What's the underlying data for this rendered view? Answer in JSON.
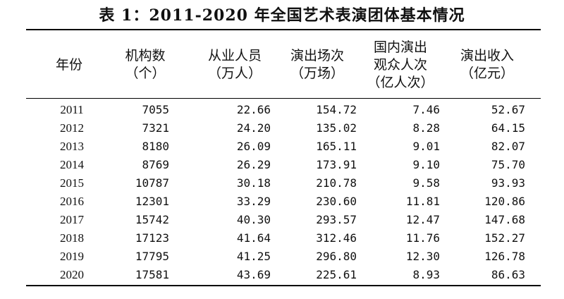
{
  "title": "表 1：2011-2020 年全国艺术表演团体基本情况",
  "headers": {
    "year": [
      "年份"
    ],
    "orgs": [
      "机构数",
      "（个）"
    ],
    "staff": [
      "从业人员",
      "（万人）"
    ],
    "shows": [
      "演出场次",
      "（万场）"
    ],
    "audience": [
      "国内演出",
      "观众人次",
      "（亿人次）"
    ],
    "revenue": [
      "演出收入",
      "（亿元）"
    ]
  },
  "rows": [
    {
      "year": "2011",
      "orgs": "7055",
      "staff": "22.66",
      "shows": "154.72",
      "audience": "7.46",
      "revenue": "52.67"
    },
    {
      "year": "2012",
      "orgs": "7321",
      "staff": "24.20",
      "shows": "135.02",
      "audience": "8.28",
      "revenue": "64.15"
    },
    {
      "year": "2013",
      "orgs": "8180",
      "staff": "26.09",
      "shows": "165.11",
      "audience": "9.01",
      "revenue": "82.07"
    },
    {
      "year": "2014",
      "orgs": "8769",
      "staff": "26.29",
      "shows": "173.91",
      "audience": "9.10",
      "revenue": "75.70"
    },
    {
      "year": "2015",
      "orgs": "10787",
      "staff": "30.18",
      "shows": "210.78",
      "audience": "9.58",
      "revenue": "93.93"
    },
    {
      "year": "2016",
      "orgs": "12301",
      "staff": "33.29",
      "shows": "230.60",
      "audience": "11.81",
      "revenue": "120.86"
    },
    {
      "year": "2017",
      "orgs": "15742",
      "staff": "40.30",
      "shows": "293.57",
      "audience": "12.47",
      "revenue": "147.68"
    },
    {
      "year": "2018",
      "orgs": "17123",
      "staff": "41.64",
      "shows": "312.46",
      "audience": "11.76",
      "revenue": "152.27"
    },
    {
      "year": "2019",
      "orgs": "17795",
      "staff": "41.25",
      "shows": "296.80",
      "audience": "12.30",
      "revenue": "126.78"
    },
    {
      "year": "2020",
      "orgs": "17581",
      "staff": "43.69",
      "shows": "225.61",
      "audience": "8.93",
      "revenue": "86.63"
    }
  ]
}
